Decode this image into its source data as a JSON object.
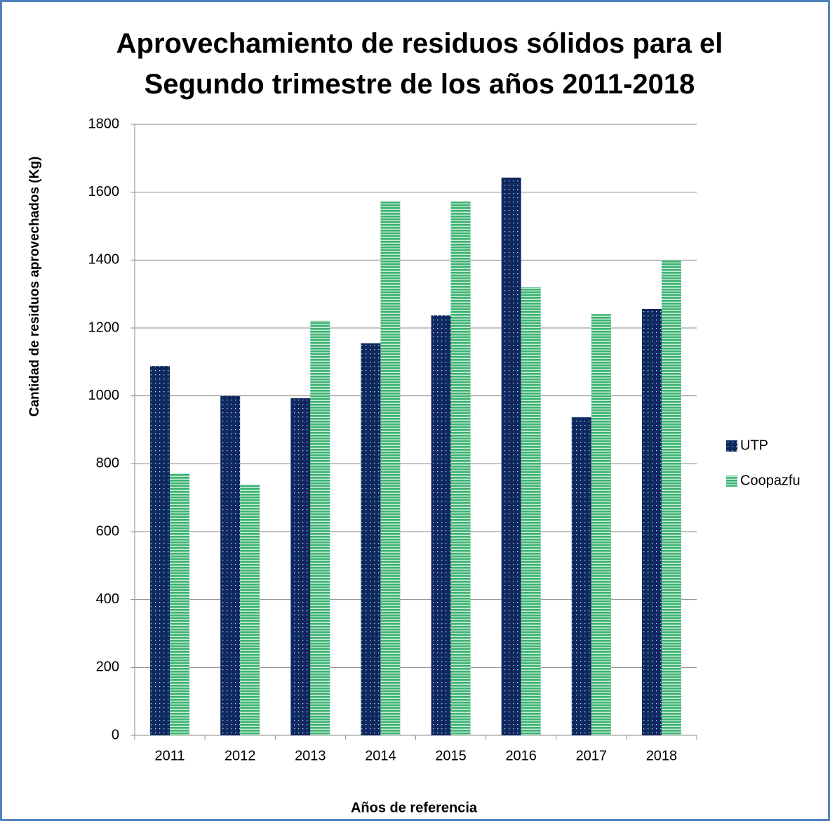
{
  "chart_data": {
    "type": "bar",
    "title": "Aprovechamiento de residuos sólidos para el Segundo trimestre de los años 2011-2018",
    "x_label": "Años de referencia",
    "y_label": "Cantidad de residuos aprovechados (Kg)",
    "categories": [
      "2011",
      "2012",
      "2013",
      "2014",
      "2015",
      "2016",
      "2017",
      "2018"
    ],
    "series": [
      {
        "name": "UTP",
        "color": "#0e2860",
        "values": [
          1088,
          1000,
          993,
          1155,
          1237,
          1643,
          937,
          1256
        ]
      },
      {
        "name": "Coopazfu",
        "color": "#3cb371",
        "values": [
          772,
          739,
          1221,
          1573,
          1573,
          1320,
          1241,
          1400
        ]
      }
    ],
    "ylim": [
      0,
      1800
    ],
    "yticks": [
      0,
      200,
      400,
      600,
      800,
      1000,
      1200,
      1400,
      1600,
      1800
    ],
    "grid": true,
    "legend": "right"
  }
}
